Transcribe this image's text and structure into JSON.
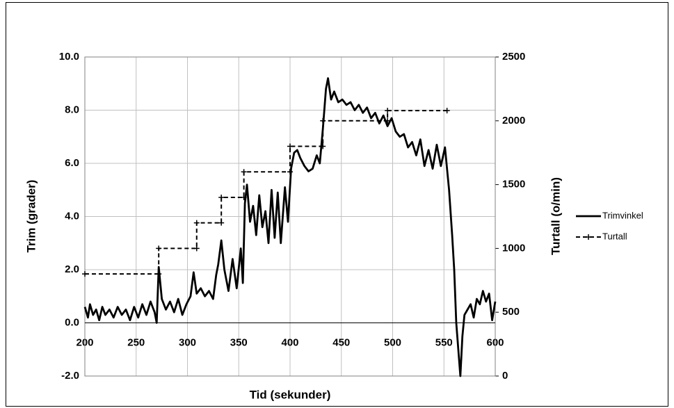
{
  "chart_data": {
    "type": "line",
    "xlabel": "Tid (sekunder)",
    "ylabel": "Trim (grader)",
    "y2label": "Turtall (o/min)",
    "xlim": [
      200,
      600
    ],
    "xticks": [
      200,
      250,
      300,
      350,
      400,
      450,
      500,
      550,
      600
    ],
    "ylim": [
      -2,
      10
    ],
    "yticks": [
      {
        "value": -2,
        "label": "-2.0"
      },
      {
        "value": 0,
        "label": "0.0"
      },
      {
        "value": 2,
        "label": "2.0"
      },
      {
        "value": 4,
        "label": "4.0"
      },
      {
        "value": 6,
        "label": "6.0"
      },
      {
        "value": 8,
        "label": "8.0"
      },
      {
        "value": 10,
        "label": "10.0"
      }
    ],
    "y2lim": [
      0,
      2500
    ],
    "y2ticks": [
      0,
      500,
      1000,
      1500,
      2000,
      2500
    ],
    "grid": true,
    "legend": "right",
    "series": [
      {
        "name": "Trimvinkel",
        "color": "#000000",
        "dash": "solid",
        "marker": "none",
        "x": [
          200,
          203,
          205,
          208,
          211,
          214,
          217,
          220,
          224,
          228,
          232,
          236,
          240,
          244,
          248,
          252,
          256,
          260,
          264,
          268,
          270,
          272,
          275,
          279,
          283,
          287,
          291,
          295,
          299,
          303,
          306,
          309,
          313,
          317,
          321,
          325,
          328,
          330,
          333,
          336,
          340,
          344,
          348,
          352,
          354,
          356,
          358,
          361,
          364,
          367,
          370,
          373,
          376,
          379,
          382,
          385,
          388,
          391,
          395,
          398,
          401,
          404,
          407,
          410,
          414,
          418,
          422,
          426,
          429,
          432,
          435,
          437,
          440,
          443,
          447,
          451,
          455,
          459,
          463,
          467,
          471,
          475,
          479,
          483,
          487,
          491,
          495,
          499,
          503,
          507,
          511,
          515,
          519,
          523,
          527,
          531,
          535,
          539,
          543,
          547,
          551,
          553,
          555,
          558,
          560,
          562,
          564,
          566,
          568,
          570,
          573,
          576,
          579,
          582,
          585,
          588,
          591,
          594,
          597,
          600
        ],
        "values": [
          0.6,
          0.2,
          0.7,
          0.3,
          0.5,
          0.1,
          0.6,
          0.3,
          0.5,
          0.2,
          0.6,
          0.3,
          0.5,
          0.1,
          0.6,
          0.2,
          0.7,
          0.3,
          0.8,
          0.4,
          0.0,
          2.1,
          0.9,
          0.5,
          0.8,
          0.4,
          0.9,
          0.3,
          0.7,
          1.0,
          1.9,
          1.1,
          1.3,
          1.0,
          1.2,
          0.9,
          1.8,
          2.2,
          3.1,
          2.0,
          1.2,
          2.4,
          1.3,
          2.8,
          1.5,
          4.5,
          5.2,
          3.8,
          4.4,
          3.3,
          4.8,
          3.6,
          4.2,
          3.0,
          5.0,
          3.2,
          4.9,
          3.0,
          5.1,
          3.8,
          5.8,
          6.4,
          6.5,
          6.2,
          5.9,
          5.7,
          5.8,
          6.3,
          6.0,
          7.3,
          8.8,
          9.2,
          8.4,
          8.7,
          8.3,
          8.4,
          8.2,
          8.3,
          8.0,
          8.2,
          7.9,
          8.1,
          7.7,
          7.9,
          7.5,
          7.8,
          7.4,
          7.7,
          7.2,
          7.0,
          7.1,
          6.6,
          6.8,
          6.3,
          6.9,
          5.9,
          6.5,
          5.8,
          6.7,
          5.9,
          6.6,
          5.8,
          5.0,
          3.3,
          2.0,
          0.0,
          -1.0,
          -2.0,
          -0.5,
          0.3,
          0.5,
          0.7,
          0.2,
          0.9,
          0.7,
          1.2,
          0.8,
          1.1,
          0.1,
          0.8
        ]
      },
      {
        "name": "Turtall",
        "color": "#000000",
        "dash": "dashed",
        "marker": "plus",
        "axis": "y2",
        "x": [
          200,
          272,
          272,
          309,
          309,
          333,
          333,
          355,
          355,
          400,
          400,
          432,
          432,
          495,
          495,
          553
        ],
        "values": [
          800,
          800,
          1000,
          1000,
          1200,
          1200,
          1400,
          1400,
          1600,
          1600,
          1800,
          1800,
          2000,
          2000,
          2080,
          2080
        ]
      }
    ]
  }
}
